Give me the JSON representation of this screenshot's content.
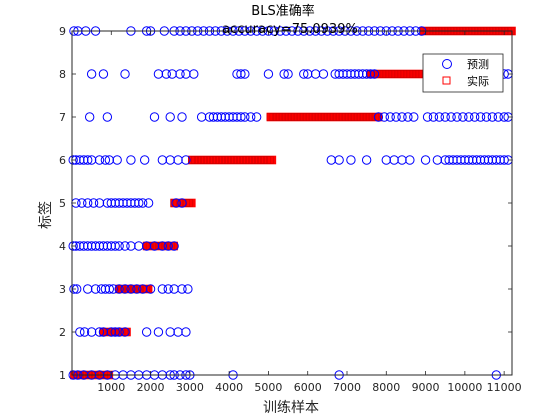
{
  "chart_data": {
    "type": "scatter",
    "title": "BLS准确率",
    "subtitle": "accuracy=75.0939%",
    "xlabel": "训练样本",
    "ylabel": "标签",
    "xlim": [
      0,
      11200
    ],
    "ylim": [
      1,
      9
    ],
    "x_ticks": [
      1000,
      2000,
      3000,
      4000,
      5000,
      6000,
      7000,
      8000,
      9000,
      10000,
      11000
    ],
    "x_tick_labels": [
      "1000",
      "2000",
      "3000",
      "4000",
      "5000",
      "6000",
      "7000",
      "8000",
      "9000",
      "10000",
      "11000"
    ],
    "y_ticks": [
      1,
      2,
      3,
      4,
      5,
      6,
      7,
      8,
      9
    ],
    "y_tick_labels": [
      "1",
      "2",
      "3",
      "4",
      "5",
      "6",
      "7",
      "8",
      "9"
    ],
    "grid": false,
    "legend_position": "top-right",
    "colors": {
      "predicted": "#0000ff",
      "actual": "#ff0000"
    },
    "series": [
      {
        "name": "预测",
        "marker": "circle",
        "points": [
          [
            30,
            1
          ],
          [
            150,
            1
          ],
          [
            300,
            1
          ],
          [
            500,
            1
          ],
          [
            700,
            1
          ],
          [
            900,
            1
          ],
          [
            1100,
            1
          ],
          [
            1300,
            1
          ],
          [
            1500,
            1
          ],
          [
            1700,
            1
          ],
          [
            1900,
            1
          ],
          [
            2100,
            1
          ],
          [
            2300,
            1
          ],
          [
            2500,
            1
          ],
          [
            2600,
            1
          ],
          [
            2750,
            1
          ],
          [
            2900,
            1
          ],
          [
            3000,
            1
          ],
          [
            4100,
            1
          ],
          [
            6800,
            1
          ],
          [
            10800,
            1
          ],
          [
            200,
            2
          ],
          [
            320,
            2
          ],
          [
            500,
            2
          ],
          [
            700,
            2
          ],
          [
            800,
            2
          ],
          [
            1000,
            2
          ],
          [
            1100,
            2
          ],
          [
            1200,
            2
          ],
          [
            1350,
            2
          ],
          [
            1900,
            2
          ],
          [
            2200,
            2
          ],
          [
            2500,
            2
          ],
          [
            2700,
            2
          ],
          [
            2900,
            2
          ],
          [
            50,
            3
          ],
          [
            120,
            3
          ],
          [
            400,
            3
          ],
          [
            600,
            3
          ],
          [
            750,
            3
          ],
          [
            850,
            3
          ],
          [
            950,
            3
          ],
          [
            1050,
            3
          ],
          [
            1200,
            3
          ],
          [
            1350,
            3
          ],
          [
            1500,
            3
          ],
          [
            1650,
            3
          ],
          [
            1800,
            3
          ],
          [
            2000,
            3
          ],
          [
            2300,
            3
          ],
          [
            2450,
            3
          ],
          [
            2600,
            3
          ],
          [
            2800,
            3
          ],
          [
            2950,
            3
          ],
          [
            30,
            4
          ],
          [
            100,
            4
          ],
          [
            200,
            4
          ],
          [
            300,
            4
          ],
          [
            400,
            4
          ],
          [
            500,
            4
          ],
          [
            600,
            4
          ],
          [
            700,
            4
          ],
          [
            800,
            4
          ],
          [
            900,
            4
          ],
          [
            1000,
            4
          ],
          [
            1100,
            4
          ],
          [
            1200,
            4
          ],
          [
            1350,
            4
          ],
          [
            1500,
            4
          ],
          [
            1700,
            4
          ],
          [
            1900,
            4
          ],
          [
            2100,
            4
          ],
          [
            2300,
            4
          ],
          [
            2450,
            4
          ],
          [
            2600,
            4
          ],
          [
            100,
            5
          ],
          [
            250,
            5
          ],
          [
            400,
            5
          ],
          [
            550,
            5
          ],
          [
            700,
            5
          ],
          [
            900,
            5
          ],
          [
            1000,
            5
          ],
          [
            1100,
            5
          ],
          [
            1200,
            5
          ],
          [
            1300,
            5
          ],
          [
            1400,
            5
          ],
          [
            1500,
            5
          ],
          [
            1600,
            5
          ],
          [
            1700,
            5
          ],
          [
            1800,
            5
          ],
          [
            1950,
            5
          ],
          [
            2650,
            5
          ],
          [
            2800,
            5
          ],
          [
            30,
            6
          ],
          [
            100,
            6
          ],
          [
            200,
            6
          ],
          [
            300,
            6
          ],
          [
            400,
            6
          ],
          [
            500,
            6
          ],
          [
            700,
            6
          ],
          [
            850,
            6
          ],
          [
            950,
            6
          ],
          [
            1150,
            6
          ],
          [
            1500,
            6
          ],
          [
            1850,
            6
          ],
          [
            2300,
            6
          ],
          [
            2500,
            6
          ],
          [
            2700,
            6
          ],
          [
            2900,
            6
          ],
          [
            6600,
            6
          ],
          [
            6800,
            6
          ],
          [
            7100,
            6
          ],
          [
            7500,
            6
          ],
          [
            8000,
            6
          ],
          [
            8200,
            6
          ],
          [
            8400,
            6
          ],
          [
            8600,
            6
          ],
          [
            9000,
            6
          ],
          [
            9300,
            6
          ],
          [
            9500,
            6
          ],
          [
            9600,
            6
          ],
          [
            9700,
            6
          ],
          [
            9800,
            6
          ],
          [
            9900,
            6
          ],
          [
            10000,
            6
          ],
          [
            10100,
            6
          ],
          [
            10200,
            6
          ],
          [
            10300,
            6
          ],
          [
            10400,
            6
          ],
          [
            10500,
            6
          ],
          [
            10600,
            6
          ],
          [
            10700,
            6
          ],
          [
            10800,
            6
          ],
          [
            10900,
            6
          ],
          [
            11000,
            6
          ],
          [
            11100,
            6
          ],
          [
            450,
            7
          ],
          [
            900,
            7
          ],
          [
            2100,
            7
          ],
          [
            2500,
            7
          ],
          [
            2800,
            7
          ],
          [
            3300,
            7
          ],
          [
            3500,
            7
          ],
          [
            3600,
            7
          ],
          [
            3700,
            7
          ],
          [
            3800,
            7
          ],
          [
            3900,
            7
          ],
          [
            4000,
            7
          ],
          [
            4100,
            7
          ],
          [
            4200,
            7
          ],
          [
            4300,
            7
          ],
          [
            4400,
            7
          ],
          [
            4550,
            7
          ],
          [
            4700,
            7
          ],
          [
            7800,
            7
          ],
          [
            7950,
            7
          ],
          [
            8100,
            7
          ],
          [
            8250,
            7
          ],
          [
            8400,
            7
          ],
          [
            8550,
            7
          ],
          [
            8700,
            7
          ],
          [
            9050,
            7
          ],
          [
            9200,
            7
          ],
          [
            9350,
            7
          ],
          [
            9500,
            7
          ],
          [
            9650,
            7
          ],
          [
            9800,
            7
          ],
          [
            9950,
            7
          ],
          [
            10100,
            7
          ],
          [
            10250,
            7
          ],
          [
            10400,
            7
          ],
          [
            10550,
            7
          ],
          [
            10700,
            7
          ],
          [
            10850,
            7
          ],
          [
            11000,
            7
          ],
          [
            11100,
            7
          ],
          [
            500,
            8
          ],
          [
            800,
            8
          ],
          [
            1350,
            8
          ],
          [
            2200,
            8
          ],
          [
            2400,
            8
          ],
          [
            2550,
            8
          ],
          [
            2750,
            8
          ],
          [
            2900,
            8
          ],
          [
            3100,
            8
          ],
          [
            4200,
            8
          ],
          [
            4300,
            8
          ],
          [
            4400,
            8
          ],
          [
            5000,
            8
          ],
          [
            5400,
            8
          ],
          [
            5500,
            8
          ],
          [
            5900,
            8
          ],
          [
            6000,
            8
          ],
          [
            6200,
            8
          ],
          [
            6400,
            8
          ],
          [
            6700,
            8
          ],
          [
            6800,
            8
          ],
          [
            6900,
            8
          ],
          [
            7000,
            8
          ],
          [
            7100,
            8
          ],
          [
            7200,
            8
          ],
          [
            7300,
            8
          ],
          [
            7400,
            8
          ],
          [
            7500,
            8
          ],
          [
            7600,
            8
          ],
          [
            7700,
            8
          ],
          [
            10700,
            8
          ],
          [
            10850,
            8
          ],
          [
            11000,
            8
          ],
          [
            11100,
            8
          ],
          [
            50,
            9
          ],
          [
            150,
            9
          ],
          [
            350,
            9
          ],
          [
            600,
            9
          ],
          [
            1500,
            9
          ],
          [
            1900,
            9
          ],
          [
            2000,
            9
          ],
          [
            2350,
            9
          ],
          [
            2600,
            9
          ],
          [
            2750,
            9
          ],
          [
            2900,
            9
          ],
          [
            3050,
            9
          ],
          [
            3200,
            9
          ],
          [
            3350,
            9
          ],
          [
            3500,
            9
          ],
          [
            3650,
            9
          ],
          [
            3800,
            9
          ],
          [
            3950,
            9
          ],
          [
            4100,
            9
          ],
          [
            4250,
            9
          ],
          [
            4400,
            9
          ],
          [
            4550,
            9
          ],
          [
            4700,
            9
          ],
          [
            4850,
            9
          ],
          [
            5000,
            9
          ],
          [
            5150,
            9
          ],
          [
            5300,
            9
          ],
          [
            5450,
            9
          ],
          [
            5600,
            9
          ],
          [
            5750,
            9
          ],
          [
            5900,
            9
          ],
          [
            6050,
            9
          ],
          [
            6200,
            9
          ],
          [
            6350,
            9
          ],
          [
            6500,
            9
          ],
          [
            6650,
            9
          ],
          [
            6800,
            9
          ],
          [
            6950,
            9
          ],
          [
            7100,
            9
          ],
          [
            7250,
            9
          ],
          [
            7400,
            9
          ],
          [
            7550,
            9
          ],
          [
            7700,
            9
          ],
          [
            7850,
            9
          ],
          [
            8000,
            9
          ],
          [
            8150,
            9
          ],
          [
            8300,
            9
          ],
          [
            8450,
            9
          ],
          [
            8600,
            9
          ],
          [
            8750,
            9
          ],
          [
            8900,
            9
          ]
        ]
      },
      {
        "name": "实际",
        "marker": "square",
        "segments": [
          [
            1,
            50,
            950
          ],
          [
            2,
            800,
            1400
          ],
          [
            3,
            1200,
            1950
          ],
          [
            4,
            1900,
            2600
          ],
          [
            5,
            2600,
            3050
          ],
          [
            6,
            3050,
            5100
          ],
          [
            7,
            5050,
            7800
          ],
          [
            8,
            7600,
            8950
          ],
          [
            9,
            8950,
            11200
          ]
        ]
      }
    ]
  }
}
